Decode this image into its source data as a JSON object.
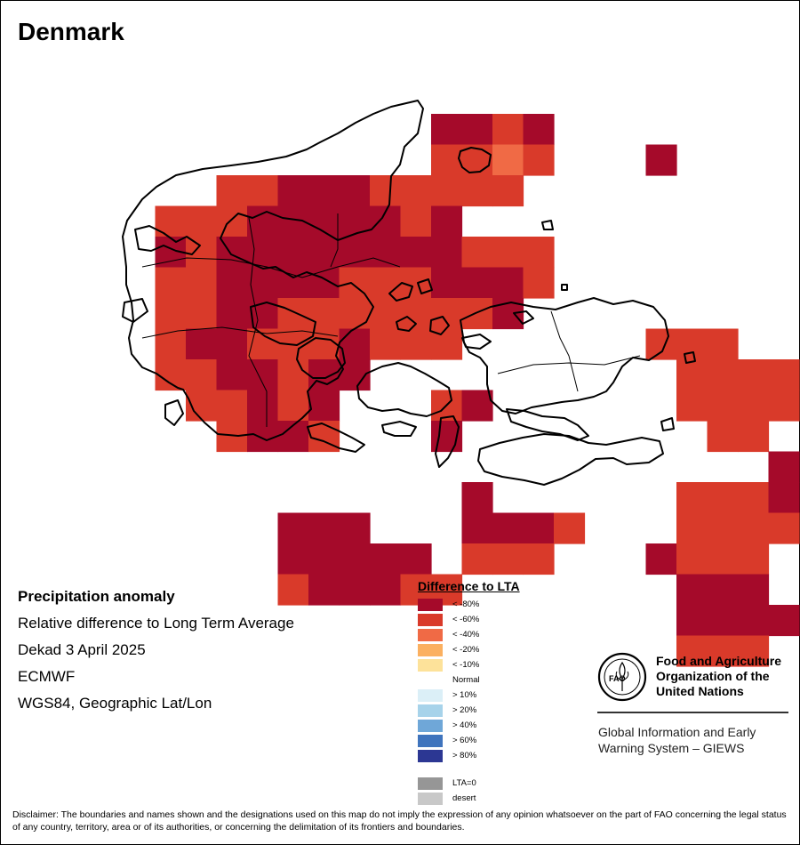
{
  "title": "Denmark",
  "info": {
    "heading": "Precipitation anomaly",
    "line1": "Relative difference to Long Term Average",
    "line2": "Dekad 3 April 2025",
    "line3": "ECMWF",
    "line4": "WGS84, Geographic Lat/Lon"
  },
  "legend": {
    "title": "Difference to LTA",
    "items": [
      {
        "label": "< -80%",
        "color": "#a50a2a"
      },
      {
        "label": "< -60%",
        "color": "#d93a2a"
      },
      {
        "label": "< -40%",
        "color": "#f06a45"
      },
      {
        "label": "< -20%",
        "color": "#fbb060"
      },
      {
        "label": "< -10%",
        "color": "#fde29a"
      },
      {
        "label": "Normal",
        "color": "#ffffff"
      },
      {
        "label": "> 10%",
        "color": "#dbeff7"
      },
      {
        "label": "> 20%",
        "color": "#a7d3ea"
      },
      {
        "label": "> 40%",
        "color": "#6fa7d8"
      },
      {
        "label": "> 60%",
        "color": "#3f74bd"
      },
      {
        "label": "> 80%",
        "color": "#2c3793"
      }
    ],
    "extra": [
      {
        "label": "LTA=0",
        "color": "#969696"
      },
      {
        "label": "desert",
        "color": "#c8c8c8"
      }
    ]
  },
  "fao": {
    "org_line1": "Food and Agriculture",
    "org_line2": "Organization of the",
    "org_line3": "United Nations",
    "giews_line1": "Global Information and Early",
    "giews_line2": "Warning System – GIEWS",
    "logo_text": "FAO",
    "logo_motto": "FIAT PANIS"
  },
  "disclaimer": "Disclaimer: The boundaries and names shown and the designations used on this map do not imply the expression of any opinion whatsoever on the part of FAO concerning the legal status of any country, territory, area or of its authorities, or concerning the delimitation of its frontiers and boundaries.",
  "map_grid": {
    "colors": {
      "1": "#a50a2a",
      "2": "#d93a2a",
      "3": "#f06a45"
    },
    "rows": [
      "..........1121........",
      "..........2232...1....",
      "...2211122222.........",
      ".2221111121...........",
      ".1211111111222........",
      ".2211112221112........",
      ".221122222221.........",
      ".2112221222......222..",
      ".2211211..........2222",
      "..22121...21......2222",
      "...2112...1........22.",
      ".....................1",
      "...........1......2221",
      ".....111...1112...2222",
      ".....11111.222...1222.",
      ".....211122.......111.",
      "..................1111",
      "..................222.",
      "......................"
    ]
  }
}
